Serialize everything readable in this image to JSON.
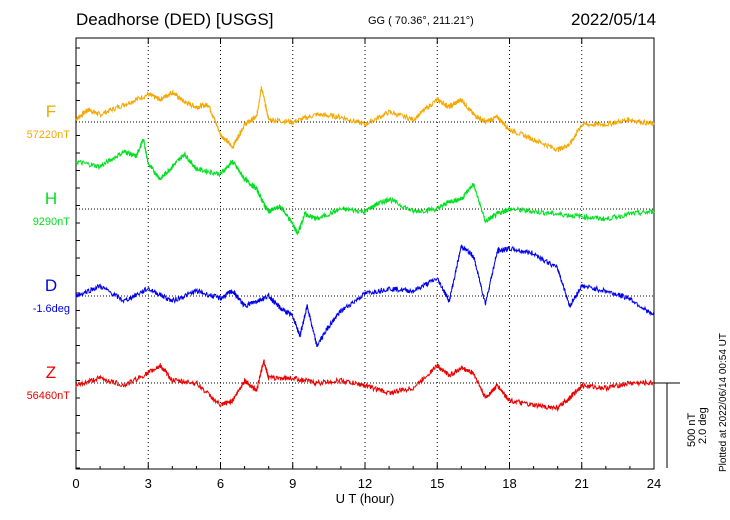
{
  "header": {
    "station": "Deadhorse (DED)  [USGS]",
    "coords": "GG ( 70.36°, 211.21°)",
    "date": "2022/05/14"
  },
  "footer_note": "Plotted at 2022/06/14 00:54 UT",
  "scale": {
    "field": "500 nT",
    "angle": "2.0 deg"
  },
  "colors": {
    "F": "#f5a800",
    "H": "#00e020",
    "D": "#0000ee",
    "Z": "#ee0000"
  },
  "chart_data": {
    "type": "line",
    "title": "Deadhorse (DED)  [USGS]",
    "xlabel": "U T (hour)",
    "xlim": [
      0,
      24
    ],
    "xticks": [
      0,
      3,
      6,
      9,
      12,
      15,
      18,
      21,
      24
    ],
    "grid": true,
    "series": [
      {
        "name": "F",
        "baseline_label": "57220nT",
        "points": [
          [
            0,
            5
          ],
          [
            0.5,
            25
          ],
          [
            1,
            15
          ],
          [
            2,
            35
          ],
          [
            3,
            55
          ],
          [
            3.5,
            45
          ],
          [
            4,
            60
          ],
          [
            4.5,
            40
          ],
          [
            5,
            30
          ],
          [
            5.5,
            35
          ],
          [
            6,
            -25
          ],
          [
            6.5,
            -50
          ],
          [
            7,
            -5
          ],
          [
            7.5,
            10
          ],
          [
            7.7,
            70
          ],
          [
            8,
            5
          ],
          [
            9,
            0
          ],
          [
            10,
            15
          ],
          [
            11,
            10
          ],
          [
            12,
            -5
          ],
          [
            13,
            20
          ],
          [
            14,
            5
          ],
          [
            15,
            45
          ],
          [
            15.5,
            30
          ],
          [
            16,
            45
          ],
          [
            16.5,
            15
          ],
          [
            17,
            0
          ],
          [
            17.5,
            10
          ],
          [
            18,
            -15
          ],
          [
            19,
            -35
          ],
          [
            20,
            -55
          ],
          [
            20.5,
            -45
          ],
          [
            21,
            -5
          ],
          [
            22,
            -5
          ],
          [
            23,
            5
          ],
          [
            24,
            -5
          ]
        ]
      },
      {
        "name": "H",
        "baseline_label": "9290nT",
        "points": [
          [
            0,
            95
          ],
          [
            1,
            85
          ],
          [
            2,
            115
          ],
          [
            2.5,
            105
          ],
          [
            2.8,
            140
          ],
          [
            3,
            90
          ],
          [
            3.5,
            60
          ],
          [
            4,
            85
          ],
          [
            4.5,
            110
          ],
          [
            5,
            80
          ],
          [
            6,
            70
          ],
          [
            6.5,
            95
          ],
          [
            7,
            60
          ],
          [
            7.5,
            40
          ],
          [
            7.8,
            10
          ],
          [
            8,
            -5
          ],
          [
            8.5,
            5
          ],
          [
            9,
            -30
          ],
          [
            9.2,
            -50
          ],
          [
            9.5,
            -10
          ],
          [
            10,
            -20
          ],
          [
            11,
            0
          ],
          [
            12,
            -5
          ],
          [
            12.5,
            10
          ],
          [
            13,
            20
          ],
          [
            14,
            -5
          ],
          [
            15,
            0
          ],
          [
            15.5,
            15
          ],
          [
            16,
            20
          ],
          [
            16.5,
            50
          ],
          [
            17,
            -25
          ],
          [
            17.5,
            -10
          ],
          [
            18,
            0
          ],
          [
            19,
            -5
          ],
          [
            20,
            -10
          ],
          [
            21,
            -15
          ],
          [
            22,
            -20
          ],
          [
            23,
            -10
          ],
          [
            24,
            -5
          ]
        ]
      },
      {
        "name": "D",
        "baseline_label": "-1.6deg",
        "points": [
          [
            0,
            0
          ],
          [
            1,
            20
          ],
          [
            2,
            -10
          ],
          [
            3,
            15
          ],
          [
            4,
            -10
          ],
          [
            5,
            10
          ],
          [
            6,
            -5
          ],
          [
            6.5,
            10
          ],
          [
            7,
            -20
          ],
          [
            7.5,
            -10
          ],
          [
            8,
            0
          ],
          [
            8.5,
            -25
          ],
          [
            9,
            -40
          ],
          [
            9.3,
            -80
          ],
          [
            9.6,
            -20
          ],
          [
            10,
            -100
          ],
          [
            10.5,
            -60
          ],
          [
            11,
            -30
          ],
          [
            12,
            5
          ],
          [
            13,
            15
          ],
          [
            14,
            10
          ],
          [
            15,
            35
          ],
          [
            15.5,
            -10
          ],
          [
            16,
            100
          ],
          [
            16.5,
            80
          ],
          [
            17,
            -15
          ],
          [
            17.5,
            90
          ],
          [
            18,
            95
          ],
          [
            19,
            85
          ],
          [
            20,
            55
          ],
          [
            20.5,
            -20
          ],
          [
            21,
            20
          ],
          [
            22,
            10
          ],
          [
            23,
            -5
          ],
          [
            24,
            -40
          ]
        ]
      },
      {
        "name": "Z",
        "baseline_label": "56460nT",
        "points": [
          [
            0,
            -5
          ],
          [
            1,
            10
          ],
          [
            2,
            -5
          ],
          [
            3,
            20
          ],
          [
            3.5,
            35
          ],
          [
            4,
            5
          ],
          [
            5,
            0
          ],
          [
            6,
            -45
          ],
          [
            6.5,
            -35
          ],
          [
            7,
            5
          ],
          [
            7.5,
            -15
          ],
          [
            7.8,
            45
          ],
          [
            8,
            10
          ],
          [
            9,
            10
          ],
          [
            10,
            0
          ],
          [
            11,
            5
          ],
          [
            12,
            -5
          ],
          [
            13,
            -20
          ],
          [
            14,
            -10
          ],
          [
            15,
            35
          ],
          [
            15.5,
            15
          ],
          [
            16,
            30
          ],
          [
            16.5,
            20
          ],
          [
            17,
            -30
          ],
          [
            17.5,
            -5
          ],
          [
            18,
            -35
          ],
          [
            19,
            -45
          ],
          [
            20,
            -50
          ],
          [
            20.5,
            -30
          ],
          [
            21,
            -5
          ],
          [
            22,
            -10
          ],
          [
            23,
            0
          ],
          [
            24,
            0
          ]
        ]
      }
    ]
  }
}
